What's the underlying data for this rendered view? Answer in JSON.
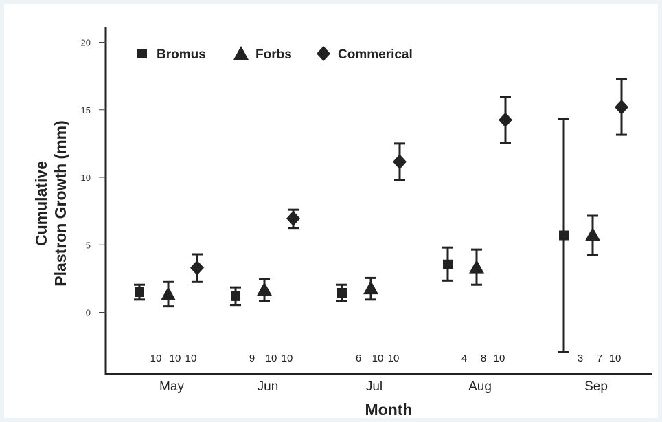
{
  "chart_data": {
    "type": "scatter",
    "title": "",
    "xlabel": "Month",
    "ylabel_lines": [
      "Cumulative",
      "Plastron Growth (mm)"
    ],
    "categories": [
      "May",
      "Jun",
      "Jul",
      "Aug",
      "Sep"
    ],
    "yticks": [
      0,
      5,
      10,
      15,
      20
    ],
    "ylim": [
      -3.5,
      21
    ],
    "legend_position": "top-left",
    "series": [
      {
        "name": "Bromus",
        "marker": "square",
        "values": [
          1.5,
          1.2,
          1.45,
          3.55,
          5.7
        ],
        "err_low": [
          0.95,
          0.55,
          0.85,
          2.35,
          -2.9
        ],
        "err_high": [
          2.05,
          1.85,
          2.05,
          4.8,
          14.3
        ],
        "n": [
          10,
          9,
          6,
          4,
          3
        ]
      },
      {
        "name": "Forbs",
        "marker": "triangle",
        "values": [
          1.35,
          1.7,
          1.8,
          3.35,
          5.75
        ],
        "err_low": [
          0.45,
          0.85,
          0.95,
          2.05,
          4.25
        ],
        "err_high": [
          2.25,
          2.45,
          2.55,
          4.65,
          7.15
        ],
        "n": [
          10,
          10,
          10,
          8,
          7
        ]
      },
      {
        "name": "Commerical",
        "marker": "diamond",
        "values": [
          3.3,
          6.95,
          11.15,
          14.25,
          15.2
        ],
        "err_low": [
          2.25,
          6.25,
          9.8,
          12.55,
          13.15
        ],
        "err_high": [
          4.3,
          7.6,
          12.5,
          15.95,
          17.25
        ],
        "n": [
          10,
          10,
          10,
          10,
          10
        ]
      }
    ],
    "colors": {
      "marker": "#222222",
      "axis": "#222222",
      "background": "#ffffff",
      "page": "#eef3f8"
    }
  }
}
